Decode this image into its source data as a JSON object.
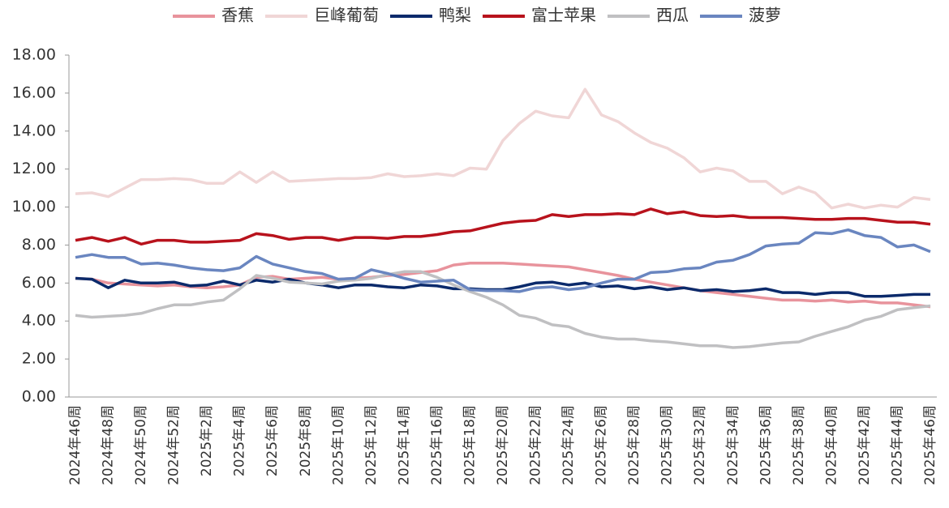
{
  "chart_data": {
    "type": "line",
    "categories": [
      "2024年46周",
      null,
      "2024年48周",
      null,
      "2024年50周",
      null,
      "2024年52周",
      null,
      "2025年2周",
      null,
      "2025年4周",
      null,
      "2025年6周",
      null,
      "2025年8周",
      null,
      "2025年10周",
      null,
      "2025年12周",
      null,
      "2025年14周",
      null,
      "2025年16周",
      null,
      "2025年18周",
      null,
      "2025年20周",
      null,
      "2025年22周",
      null,
      "2025年24周",
      null,
      "2025年26周",
      null,
      "2025年28周",
      null,
      "2025年30周",
      null,
      "2025年32周",
      null,
      "2025年34周",
      null,
      "2025年36周",
      null,
      "2025年38周",
      null,
      "2025年40周",
      null,
      "2025年42周",
      null,
      "2025年44周",
      null,
      "2025年46周"
    ],
    "series": [
      {
        "name": "香蕉",
        "color": "#e8939c",
        "values": [
          6.25,
          6.2,
          6.0,
          5.95,
          5.9,
          5.85,
          5.9,
          5.8,
          5.75,
          5.8,
          5.9,
          6.3,
          6.35,
          6.2,
          6.25,
          6.3,
          6.2,
          6.25,
          6.3,
          6.4,
          6.45,
          6.55,
          6.65,
          6.95,
          7.05,
          7.05,
          7.05,
          7.0,
          6.95,
          6.9,
          6.85,
          6.7,
          6.55,
          6.4,
          6.2,
          6.05,
          5.9,
          5.75,
          5.6,
          5.5,
          5.4,
          5.3,
          5.2,
          5.1,
          5.1,
          5.05,
          5.1,
          5.0,
          5.05,
          4.95,
          4.95,
          4.85,
          4.75
        ]
      },
      {
        "name": "巨峰葡萄",
        "color": "#f0d6d6",
        "values": [
          10.7,
          10.75,
          10.55,
          11.0,
          11.45,
          11.45,
          11.5,
          11.45,
          11.25,
          11.25,
          11.85,
          11.3,
          11.85,
          11.35,
          11.4,
          11.45,
          11.5,
          11.5,
          11.55,
          11.75,
          11.6,
          11.65,
          11.75,
          11.65,
          12.05,
          12.0,
          13.5,
          14.4,
          15.05,
          14.8,
          14.7,
          16.2,
          14.85,
          14.5,
          13.9,
          13.4,
          13.1,
          12.6,
          11.85,
          12.05,
          11.9,
          11.35,
          11.35,
          10.7,
          11.05,
          10.75,
          9.95,
          10.15,
          9.95,
          10.1,
          10.0,
          10.5,
          10.4
        ]
      },
      {
        "name": "鸭梨",
        "color": "#0b2a6b",
        "values": [
          6.25,
          6.2,
          5.75,
          6.15,
          6.0,
          6.0,
          6.05,
          5.85,
          5.9,
          6.1,
          5.9,
          6.15,
          6.05,
          6.2,
          6.0,
          5.9,
          5.75,
          5.9,
          5.9,
          5.8,
          5.75,
          5.9,
          5.85,
          5.7,
          5.7,
          5.65,
          5.65,
          5.8,
          6.0,
          6.05,
          5.9,
          6.0,
          5.8,
          5.85,
          5.7,
          5.8,
          5.65,
          5.75,
          5.6,
          5.65,
          5.55,
          5.6,
          5.7,
          5.5,
          5.5,
          5.4,
          5.5,
          5.5,
          5.3,
          5.3,
          5.35,
          5.4,
          5.4
        ]
      },
      {
        "name": "富士苹果",
        "color": "#b8121c",
        "values": [
          8.25,
          8.4,
          8.2,
          8.4,
          8.05,
          8.25,
          8.25,
          8.15,
          8.15,
          8.2,
          8.25,
          8.6,
          8.5,
          8.3,
          8.4,
          8.4,
          8.25,
          8.4,
          8.4,
          8.35,
          8.45,
          8.45,
          8.55,
          8.7,
          8.75,
          8.95,
          9.15,
          9.25,
          9.3,
          9.6,
          9.5,
          9.6,
          9.6,
          9.65,
          9.6,
          9.9,
          9.65,
          9.75,
          9.55,
          9.5,
          9.55,
          9.45,
          9.45,
          9.45,
          9.4,
          9.35,
          9.35,
          9.4,
          9.4,
          9.3,
          9.2,
          9.2,
          9.1
        ]
      },
      {
        "name": "西瓜",
        "color": "#c0c0c2",
        "values": [
          4.3,
          4.2,
          4.25,
          4.3,
          4.4,
          4.65,
          4.85,
          4.85,
          5.0,
          5.1,
          5.7,
          6.4,
          6.25,
          6.05,
          6.0,
          5.95,
          6.1,
          6.15,
          6.25,
          6.45,
          6.6,
          6.6,
          6.3,
          5.9,
          5.55,
          5.25,
          4.85,
          4.3,
          4.15,
          3.8,
          3.7,
          3.35,
          3.15,
          3.05,
          3.05,
          2.95,
          2.9,
          2.8,
          2.7,
          2.7,
          2.6,
          2.65,
          2.75,
          2.85,
          2.9,
          3.2,
          3.45,
          3.7,
          4.05,
          4.25,
          4.6,
          4.7,
          4.8
        ]
      },
      {
        "name": "菠萝",
        "color": "#6a86c0",
        "values": [
          7.35,
          7.5,
          7.35,
          7.35,
          7.0,
          7.05,
          6.95,
          6.8,
          6.7,
          6.65,
          6.8,
          7.4,
          7.0,
          6.8,
          6.6,
          6.5,
          6.2,
          6.25,
          6.7,
          6.5,
          6.25,
          6.05,
          6.1,
          6.15,
          5.65,
          5.6,
          5.6,
          5.55,
          5.75,
          5.8,
          5.65,
          5.75,
          6.0,
          6.2,
          6.2,
          6.55,
          6.6,
          6.75,
          6.8,
          7.1,
          7.2,
          7.5,
          7.95,
          8.05,
          8.1,
          8.65,
          8.6,
          8.8,
          8.5,
          8.4,
          7.9,
          8.0,
          7.65
        ]
      }
    ],
    "ylim": [
      0,
      18
    ],
    "yticks": [
      {
        "value": 0,
        "label": "0.00"
      },
      {
        "value": 2,
        "label": "2.00"
      },
      {
        "value": 4,
        "label": "4.00"
      },
      {
        "value": 6,
        "label": "6.00"
      },
      {
        "value": 8,
        "label": "8.00"
      },
      {
        "value": 10,
        "label": "10.00"
      },
      {
        "value": 12,
        "label": "12.00"
      },
      {
        "value": 14,
        "label": "14.00"
      },
      {
        "value": 16,
        "label": "16.00"
      },
      {
        "value": 18,
        "label": "18.00"
      }
    ],
    "grid": false,
    "legend": "top"
  }
}
